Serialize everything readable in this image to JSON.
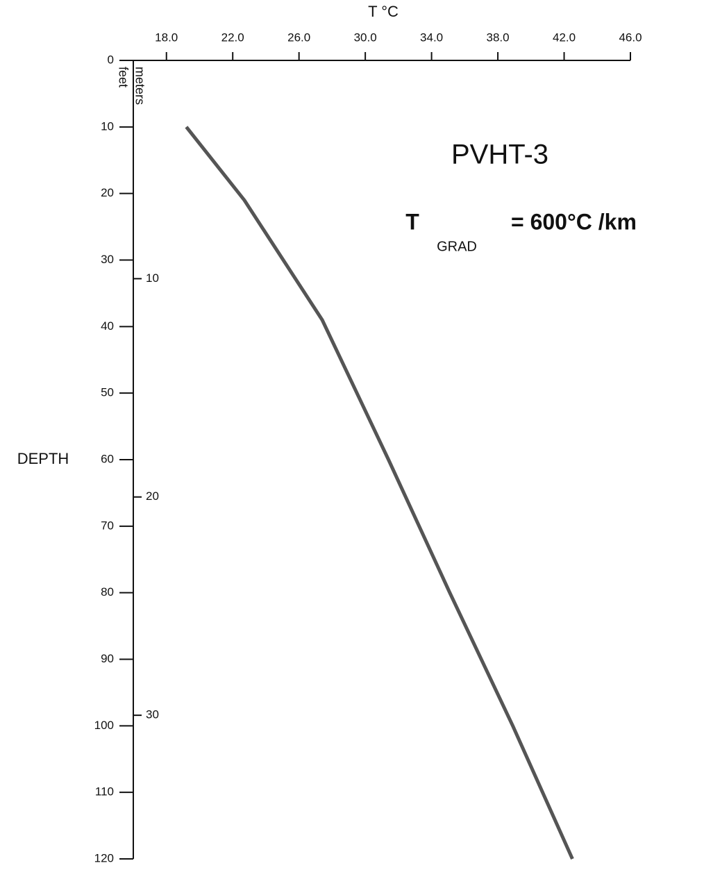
{
  "chart_data": {
    "type": "line",
    "xlabel": "T °C",
    "ylabel": "DEPTH",
    "y_unit_label": "feet",
    "y2_unit_label": "meters",
    "annotations": [
      "PVHT-3"
    ],
    "gradient": {
      "symbol": "T",
      "subscript": "GRAD",
      "text": "= 600°C /km"
    },
    "xlim": [
      16,
      46
    ],
    "xticks": [
      {
        "value": 18,
        "label": "18.0"
      },
      {
        "value": 22,
        "label": "22.0"
      },
      {
        "value": 26,
        "label": "26.0"
      },
      {
        "value": 30,
        "label": "30.0"
      },
      {
        "value": 34,
        "label": "34.0"
      },
      {
        "value": 38,
        "label": "38.0"
      },
      {
        "value": 42,
        "label": "42.0"
      },
      {
        "value": 46,
        "label": "46.0"
      }
    ],
    "ylim": [
      0,
      120
    ],
    "yticks": [
      0,
      10,
      20,
      30,
      40,
      50,
      60,
      70,
      80,
      90,
      100,
      110,
      120
    ],
    "y2lim": [
      0,
      36.58
    ],
    "y2ticks": [
      10,
      20,
      30
    ],
    "series": [
      {
        "color": "#555555",
        "x": [
          19.2,
          22.7,
          27.4,
          31.4,
          35.1,
          38.9,
          42.5
        ],
        "values": [
          10,
          21,
          39,
          60,
          80,
          100,
          120
        ]
      }
    ]
  }
}
